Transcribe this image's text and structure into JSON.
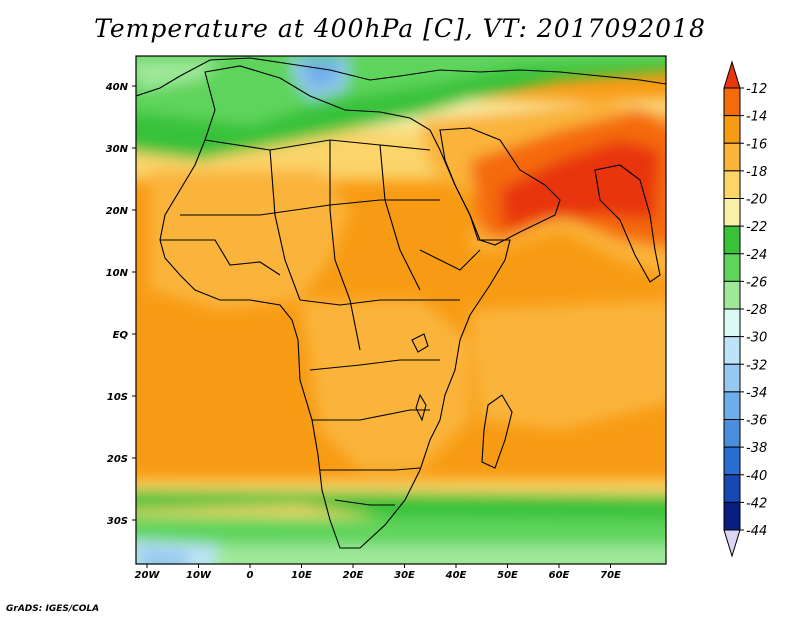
{
  "title": "Temperature at 400hPa [C], VT: 2017092018",
  "footer": "GrADS: IGES/COLA",
  "axes": {
    "lon_ticks": [
      "20W",
      "10W",
      "0",
      "10E",
      "20E",
      "30E",
      "40E",
      "50E",
      "60E",
      "70E"
    ],
    "lat_ticks": [
      "40N",
      "30N",
      "20N",
      "10N",
      "EQ",
      "10S",
      "20S",
      "30S"
    ]
  },
  "colorbar": {
    "levels": [
      "-12",
      "-14",
      "-16",
      "-18",
      "-20",
      "-22",
      "-24",
      "-26",
      "-28",
      "-30",
      "-32",
      "-34",
      "-36",
      "-38",
      "-40",
      "-42",
      "-44"
    ],
    "colors": [
      "#e8360e",
      "#f56a0c",
      "#f89b14",
      "#fab43a",
      "#fbd46a",
      "#faf0a8",
      "#37c23a",
      "#5fd45c",
      "#9fe89a",
      "#dcfaf5",
      "#bde3f8",
      "#96c8f0",
      "#6eaee8",
      "#4b8fdc",
      "#2b6ed2",
      "#1648b4",
      "#0a1e82"
    ]
  }
}
